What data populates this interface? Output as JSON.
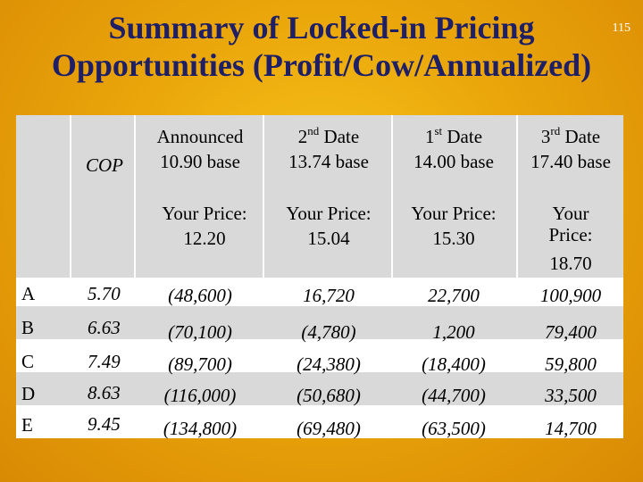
{
  "title": {
    "line1": "Summary of Locked-in Pricing",
    "line2": "Opportunities (Profit/Cow/Annualized)"
  },
  "page_number": "115",
  "header": {
    "cop_label": "COP",
    "columns": [
      {
        "name": "Announced",
        "name_sup": "",
        "name_rest": "",
        "base": "10.90 base",
        "price_label": "Your Price:",
        "price": "12.20"
      },
      {
        "name": "2",
        "name_sup": "nd",
        "name_rest": " Date",
        "base": "13.74 base",
        "price_label": "Your Price:",
        "price": "15.04"
      },
      {
        "name": "1",
        "name_sup": "st",
        "name_rest": " Date",
        "base": "14.00 base",
        "price_label": "Your Price:",
        "price": "15.30"
      },
      {
        "name": "3",
        "name_sup": "rd",
        "name_rest": " Date",
        "base": "17.40 base",
        "price_label": "Your Price:",
        "price": "18.70"
      }
    ]
  },
  "rows": [
    {
      "label": "A",
      "cop": "5.70",
      "values": [
        "(48,600)",
        "16,720",
        "22,700",
        "100,900"
      ]
    },
    {
      "label": "B",
      "cop": "6.63",
      "values": [
        "(70,100)",
        "(4,780)",
        "1,200",
        "79,400"
      ]
    },
    {
      "label": "C",
      "cop": "7.49",
      "values": [
        "(89,700)",
        "(24,380)",
        "(18,400)",
        "59,800"
      ]
    },
    {
      "label": "D",
      "cop": "8.63",
      "values": [
        "(116,000)",
        "(50,680)",
        "(44,700)",
        "33,500"
      ]
    },
    {
      "label": "E",
      "cop": "9.45",
      "values": [
        "(134,800)",
        "(69,480)",
        "(63,500)",
        "14,700"
      ]
    }
  ],
  "colors": {
    "title": "#1f1f66",
    "background": "#eaa60a",
    "cell_grey": "#d9d9d9",
    "cell_white": "#ffffff"
  }
}
